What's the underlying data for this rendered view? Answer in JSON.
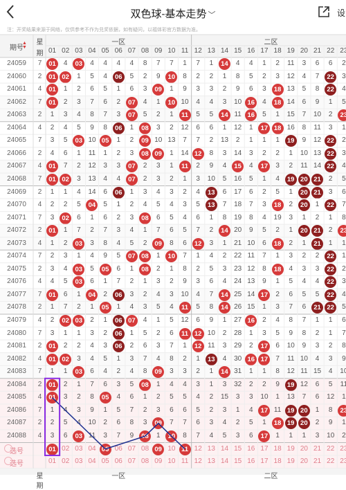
{
  "header": {
    "back_icon": "chevron-left-icon",
    "title": "双色球-基本走势",
    "share_icon": "share-icon",
    "share_label": "设"
  },
  "notice": "注：开奖结果来源于网络，仅供参考不作为兑奖依据，如有疑问，以福体彩官方数据为准。",
  "table": {
    "col_issue": "期号",
    "col_week_top": "星",
    "col_week_bottom": "期",
    "zone1_label": "一区",
    "zone2_label": "二区",
    "zone1_numbers": [
      "01",
      "02",
      "03",
      "04",
      "05",
      "06",
      "07",
      "08",
      "09",
      "10",
      "11"
    ],
    "zone2_numbers": [
      "12",
      "13",
      "14",
      "15",
      "16",
      "17",
      "18",
      "19",
      "20",
      "21",
      "22",
      "23"
    ],
    "rows": [
      {
        "issue": "24059",
        "week": "7",
        "cells": [
          "01",
          "4",
          "03",
          "4",
          "4",
          "4",
          "4",
          "8",
          "7",
          "7",
          "1",
          "7",
          "1",
          "14",
          "4",
          "4",
          "1",
          "2",
          "11",
          "3",
          "6",
          "6",
          "2"
        ]
      },
      {
        "issue": "24060",
        "week": "2",
        "cells": [
          "01",
          "02",
          "1",
          "5",
          "4",
          "06",
          "5",
          "2",
          "9",
          "10",
          "8",
          "2",
          "2",
          "1",
          "8",
          "5",
          "2",
          "3",
          "12",
          "4",
          "7",
          "22",
          "3"
        ]
      },
      {
        "issue": "24061",
        "week": "4",
        "cells": [
          "01",
          "1",
          "2",
          "6",
          "5",
          "1",
          "6",
          "3",
          "09",
          "1",
          "9",
          "3",
          "3",
          "2",
          "9",
          "6",
          "3",
          "18",
          "13",
          "5",
          "8",
          "22",
          "4"
        ]
      },
      {
        "issue": "24062",
        "week": "7",
        "cells": [
          "01",
          "2",
          "3",
          "7",
          "6",
          "2",
          "07",
          "4",
          "1",
          "10",
          "10",
          "4",
          "4",
          "3",
          "10",
          "16",
          "4",
          "18",
          "14",
          "6",
          "9",
          "1",
          "5"
        ]
      },
      {
        "issue": "24063",
        "week": "2",
        "cells": [
          "1",
          "3",
          "4",
          "8",
          "7",
          "3",
          "07",
          "5",
          "2",
          "1",
          "11",
          "5",
          "5",
          "14",
          "11",
          "16",
          "5",
          "1",
          "15",
          "7",
          "10",
          "2",
          "23"
        ]
      },
      {
        "issue": "24064",
        "week": "4",
        "cells": [
          "2",
          "4",
          "5",
          "9",
          "8",
          "06",
          "1",
          "08",
          "3",
          "2",
          "12",
          "6",
          "6",
          "1",
          "12",
          "1",
          "17",
          "18",
          "16",
          "8",
          "11",
          "3",
          "1"
        ]
      },
      {
        "issue": "24065",
        "week": "7",
        "cells": [
          "3",
          "5",
          "03",
          "10",
          "05",
          "1",
          "2",
          "09",
          "10",
          "13",
          "7",
          "7",
          "2",
          "13",
          "2",
          "1",
          "1",
          "1",
          "19",
          "9",
          "12",
          "22",
          "2"
        ]
      },
      {
        "issue": "24066",
        "week": "2",
        "cells": [
          "4",
          "6",
          "1",
          "11",
          "1",
          "2",
          "3",
          "08",
          "09",
          "1",
          "14",
          "12",
          "8",
          "3",
          "14",
          "3",
          "2",
          "2",
          "1",
          "10",
          "13",
          "22",
          "3"
        ]
      },
      {
        "issue": "24067",
        "week": "4",
        "cells": [
          "01",
          "7",
          "2",
          "12",
          "3",
          "3",
          "07",
          "2",
          "3",
          "1",
          "11",
          "2",
          "9",
          "4",
          "15",
          "4",
          "17",
          "3",
          "2",
          "11",
          "14",
          "22",
          "4"
        ]
      },
      {
        "issue": "24068",
        "week": "7",
        "cells": [
          "01",
          "02",
          "3",
          "13",
          "4",
          "4",
          "07",
          "2",
          "3",
          "2",
          "1",
          "3",
          "10",
          "5",
          "16",
          "5",
          "1",
          "4",
          "19",
          "20",
          "21",
          "2",
          "5"
        ]
      },
      {
        "issue": "24069",
        "week": "2",
        "cells": [
          "1",
          "1",
          "4",
          "14",
          "6",
          "06",
          "1",
          "3",
          "4",
          "3",
          "2",
          "4",
          "13",
          "6",
          "17",
          "6",
          "2",
          "5",
          "1",
          "20",
          "21",
          "3",
          "6"
        ]
      },
      {
        "issue": "24070",
        "week": "4",
        "cells": [
          "2",
          "2",
          "5",
          "04",
          "5",
          "1",
          "2",
          "4",
          "5",
          "4",
          "3",
          "5",
          "13",
          "7",
          "18",
          "7",
          "3",
          "18",
          "2",
          "20",
          "1",
          "22",
          "7"
        ]
      },
      {
        "issue": "24071",
        "week": "7",
        "cells": [
          "3",
          "02",
          "6",
          "1",
          "6",
          "2",
          "3",
          "08",
          "6",
          "5",
          "4",
          "6",
          "1",
          "8",
          "19",
          "8",
          "4",
          "19",
          "3",
          "1",
          "2",
          "1",
          "8"
        ]
      },
      {
        "issue": "24072",
        "week": "2",
        "cells": [
          "01",
          "1",
          "7",
          "2",
          "7",
          "3",
          "4",
          "1",
          "7",
          "6",
          "5",
          "7",
          "2",
          "14",
          "20",
          "9",
          "5",
          "2",
          "1",
          "20",
          "21",
          "2",
          "23"
        ]
      },
      {
        "issue": "24073",
        "week": "4",
        "cells": [
          "1",
          "2",
          "03",
          "3",
          "8",
          "4",
          "5",
          "2",
          "09",
          "8",
          "6",
          "12",
          "3",
          "1",
          "21",
          "10",
          "6",
          "18",
          "2",
          "1",
          "21",
          "1",
          "1"
        ]
      },
      {
        "issue": "24074",
        "week": "7",
        "cells": [
          "2",
          "3",
          "1",
          "4",
          "9",
          "5",
          "07",
          "08",
          "1",
          "10",
          "7",
          "1",
          "4",
          "2",
          "22",
          "11",
          "7",
          "1",
          "3",
          "2",
          "2",
          "22",
          "1"
        ]
      },
      {
        "issue": "24075",
        "week": "2",
        "cells": [
          "3",
          "4",
          "03",
          "5",
          "05",
          "6",
          "1",
          "08",
          "2",
          "1",
          "8",
          "2",
          "5",
          "3",
          "23",
          "12",
          "8",
          "18",
          "4",
          "3",
          "3",
          "22",
          "2"
        ]
      },
      {
        "issue": "24076",
        "week": "4",
        "cells": [
          "4",
          "5",
          "03",
          "6",
          "1",
          "7",
          "2",
          "1",
          "3",
          "2",
          "9",
          "3",
          "6",
          "4",
          "24",
          "13",
          "9",
          "1",
          "5",
          "4",
          "4",
          "22",
          "3"
        ]
      },
      {
        "issue": "24077",
        "week": "7",
        "cells": [
          "01",
          "6",
          "1",
          "04",
          "2",
          "06",
          "3",
          "2",
          "4",
          "3",
          "10",
          "4",
          "7",
          "14",
          "25",
          "14",
          "17",
          "2",
          "6",
          "5",
          "5",
          "22",
          "4"
        ]
      },
      {
        "issue": "24078",
        "week": "2",
        "cells": [
          "1",
          "7",
          "2",
          "1",
          "05",
          "1",
          "4",
          "3",
          "5",
          "4",
          "11",
          "5",
          "8",
          "14",
          "26",
          "15",
          "1",
          "3",
          "7",
          "6",
          "21",
          "22",
          "5"
        ]
      },
      {
        "issue": "24079",
        "week": "4",
        "cells": [
          "2",
          "02",
          "03",
          "2",
          "1",
          "06",
          "07",
          "4",
          "1",
          "5",
          "12",
          "6",
          "9",
          "1",
          "27",
          "16",
          "2",
          "4",
          "8",
          "7",
          "1",
          "1",
          "6"
        ]
      },
      {
        "issue": "24080",
        "week": "7",
        "cells": [
          "3",
          "1",
          "1",
          "3",
          "2",
          "06",
          "1",
          "5",
          "2",
          "6",
          "11",
          "12",
          "10",
          "2",
          "28",
          "1",
          "3",
          "5",
          "9",
          "8",
          "2",
          "1",
          "7"
        ]
      },
      {
        "issue": "24081",
        "week": "2",
        "cells": [
          "01",
          "2",
          "2",
          "4",
          "3",
          "06",
          "2",
          "6",
          "3",
          "7",
          "1",
          "12",
          "11",
          "3",
          "29",
          "2",
          "17",
          "6",
          "10",
          "9",
          "3",
          "2",
          "8"
        ]
      },
      {
        "issue": "24082",
        "week": "4",
        "cells": [
          "01",
          "02",
          "3",
          "4",
          "5",
          "1",
          "3",
          "7",
          "4",
          "8",
          "2",
          "1",
          "13",
          "4",
          "30",
          "16",
          "17",
          "7",
          "11",
          "10",
          "4",
          "3",
          "9"
        ]
      },
      {
        "issue": "24083",
        "week": "7",
        "cells": [
          "1",
          "1",
          "03",
          "6",
          "4",
          "2",
          "4",
          "8",
          "09",
          "3",
          "3",
          "2",
          "1",
          "14",
          "31",
          "1",
          "1",
          "8",
          "12",
          "11",
          "15",
          "4",
          "10"
        ]
      },
      {
        "issue": "24084",
        "week": "2",
        "cells": [
          "01",
          "2",
          "1",
          "7",
          "6",
          "3",
          "5",
          "08",
          "1",
          "4",
          "4",
          "3",
          "1",
          "3",
          "32",
          "2",
          "2",
          "9",
          "19",
          "12",
          "6",
          "5",
          "11"
        ]
      },
      {
        "issue": "24085",
        "week": "4",
        "cells": [
          "01",
          "3",
          "2",
          "8",
          "05",
          "4",
          "6",
          "1",
          "2",
          "5",
          "5",
          "4",
          "2",
          "15",
          "3",
          "3",
          "10",
          "1",
          "13",
          "7",
          "6",
          "12",
          "1"
        ]
      },
      {
        "issue": "24086",
        "week": "7",
        "cells": [
          "1",
          "4",
          "3",
          "9",
          "1",
          "5",
          "7",
          "2",
          "3",
          "6",
          "6",
          "5",
          "2",
          "3",
          "1",
          "4",
          "17",
          "11",
          "19",
          "20",
          "1",
          "8",
          "23"
        ]
      },
      {
        "issue": "24087",
        "week": "2",
        "cells": [
          "2",
          "5",
          "4",
          "10",
          "2",
          "6",
          "8",
          "3",
          "09",
          "7",
          "7",
          "6",
          "3",
          "4",
          "2",
          "5",
          "1",
          "18",
          "19",
          "20",
          "2",
          "9",
          "1"
        ]
      },
      {
        "issue": "24088",
        "week": "4",
        "cells": [
          "3",
          "6",
          "03",
          "11",
          "3",
          "7",
          "9",
          "08",
          "1",
          "10",
          "8",
          "7",
          "4",
          "5",
          "3",
          "6",
          "17",
          "1",
          "1",
          "1",
          "3",
          "10",
          "2"
        ]
      }
    ],
    "select_row_label": "选号",
    "select_numbers_zone1": [
      "01",
      "02",
      "03",
      "04",
      "05",
      "06",
      "07",
      "08",
      "09",
      "10",
      "11"
    ],
    "select_numbers_zone2": [
      "12",
      "13",
      "14",
      "15",
      "16",
      "17",
      "18",
      "19",
      "20",
      "21",
      "22",
      "23"
    ],
    "footer_zone1_label": "一区",
    "footer_zone2_label": "二区",
    "footer_week_top": "星",
    "footer_week_bottom": "期"
  },
  "colors": {
    "ball_red": "#d63a3a",
    "ball_dark": "#8e1f1f",
    "trend_line": "#1c2f8f",
    "highlight_box": "#8a2be2"
  }
}
